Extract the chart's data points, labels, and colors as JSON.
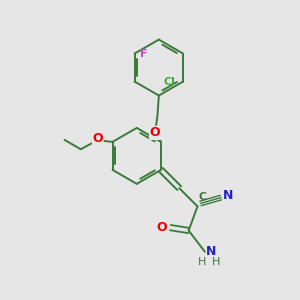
{
  "bg_color": "#e6e6e6",
  "bond_color": "#3a7a3a",
  "atom_colors": {
    "O": "#ee0000",
    "N": "#2222cc",
    "Cl": "#44aa44",
    "F": "#cc44cc",
    "C": "#3a7a3a"
  },
  "figsize": [
    3.0,
    3.0
  ],
  "dpi": 100
}
